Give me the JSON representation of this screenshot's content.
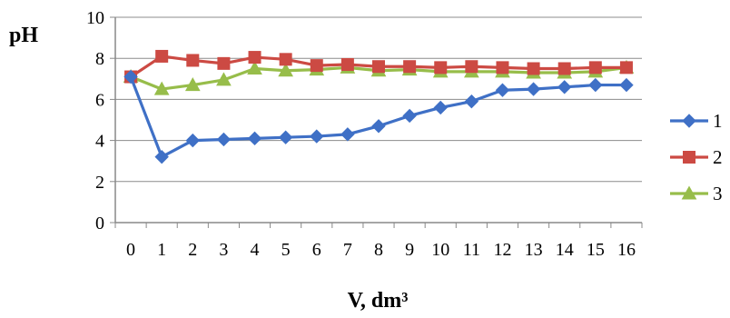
{
  "chart_data": {
    "type": "line",
    "ylabel": "pH",
    "xlabel": "V, dm³",
    "ylim": [
      0,
      10
    ],
    "yticks": [
      0,
      2,
      4,
      6,
      8,
      10
    ],
    "x": [
      0,
      1,
      2,
      3,
      4,
      5,
      6,
      7,
      8,
      9,
      10,
      11,
      12,
      13,
      14,
      15,
      16
    ],
    "grid": "horizontal",
    "legend_position": "right",
    "series": [
      {
        "name": "1",
        "color": "#3f70c6",
        "marker": "diamond",
        "values": [
          7.1,
          3.2,
          4.0,
          4.05,
          4.1,
          4.15,
          4.2,
          4.3,
          4.7,
          5.2,
          5.6,
          5.9,
          6.45,
          6.5,
          6.6,
          6.7,
          6.7
        ]
      },
      {
        "name": "2",
        "color": "#cc4a43",
        "marker": "square",
        "values": [
          7.1,
          8.1,
          7.9,
          7.75,
          8.05,
          7.95,
          7.65,
          7.7,
          7.6,
          7.6,
          7.55,
          7.6,
          7.55,
          7.5,
          7.5,
          7.55,
          7.55
        ]
      },
      {
        "name": "3",
        "color": "#97bd4a",
        "marker": "triangle",
        "values": [
          7.1,
          6.5,
          6.7,
          6.95,
          7.5,
          7.4,
          7.45,
          7.55,
          7.4,
          7.45,
          7.35,
          7.35,
          7.35,
          7.3,
          7.3,
          7.35,
          7.55
        ]
      }
    ]
  }
}
